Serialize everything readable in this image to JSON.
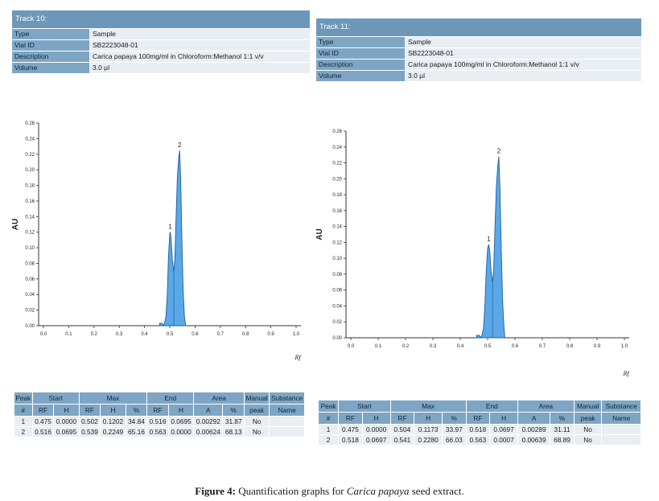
{
  "tracks": [
    {
      "header": "Track 10:",
      "info": [
        {
          "key": "Type",
          "value": "Sample"
        },
        {
          "key": "Vial ID",
          "value": "SB2223048-01"
        },
        {
          "key": "Description",
          "value": "Carica papaya 100mg/ml in Chloroform:Methanol 1:1 v/v"
        },
        {
          "key": "Volume",
          "value": "3.0 µl"
        }
      ],
      "table": {
        "group_headers": [
          "Peak",
          "Start",
          "Max",
          "End",
          "Area",
          "Manual",
          "Substance"
        ],
        "sub_headers": [
          "#",
          "RF",
          "H",
          "RF",
          "H",
          "%",
          "RF",
          "H",
          "A",
          "%",
          "peak",
          "Name"
        ],
        "rows": [
          [
            "1",
            "0.475",
            "0.0000",
            "0.502",
            "0.1202",
            "34.84",
            "0.516",
            "0.0695",
            "0.00292",
            "31.87",
            "No",
            ""
          ],
          [
            "2",
            "0.516",
            "0.0695",
            "0.539",
            "0.2249",
            "65.16",
            "0.563",
            "0.0000",
            "0.00624",
            "68.13",
            "No",
            ""
          ]
        ]
      }
    },
    {
      "header": "Track 11:",
      "info": [
        {
          "key": "Type",
          "value": "Sample"
        },
        {
          "key": "Vial ID",
          "value": "SB2223048-01"
        },
        {
          "key": "Description",
          "value": "Carica papaya 100mg/ml in Chloroform:Methanol 1:1 v/v"
        },
        {
          "key": "Volume",
          "value": "3.0 µl"
        }
      ],
      "table": {
        "group_headers": [
          "Peak",
          "Start",
          "Max",
          "End",
          "Area",
          "Manual",
          "Substance"
        ],
        "sub_headers": [
          "#",
          "RF",
          "H",
          "RF",
          "H",
          "%",
          "RF",
          "H",
          "A",
          "%",
          "peak",
          "Name"
        ],
        "rows": [
          [
            "1",
            "0.475",
            "0.0000",
            "0.504",
            "0.1173",
            "33.97",
            "0.518",
            "0.0697",
            "0.00289",
            "31.11",
            "No",
            ""
          ],
          [
            "2",
            "0.518",
            "0.0697",
            "0.541",
            "0.2280",
            "66.03",
            "0.563",
            "0.0007",
            "0.00639",
            "68.89",
            "No",
            ""
          ]
        ]
      }
    }
  ],
  "chart_data": [
    {
      "type": "area",
      "title": "",
      "xlabel": "Rf",
      "ylabel": "AU",
      "xlim": [
        0,
        1.0
      ],
      "ylim": [
        0,
        0.26
      ],
      "x_ticks": [
        "0.0",
        "0.1",
        "0.2",
        "0.3",
        "0.4",
        "0.5",
        "0.6",
        "0.7",
        "0.8",
        "0.9",
        "1.0"
      ],
      "y_ticks": [
        "0.00",
        "0.02",
        "0.04",
        "0.06",
        "0.08",
        "0.10",
        "0.12",
        "0.14",
        "0.16",
        "0.18",
        "0.20",
        "0.22",
        "0.24",
        "0.26"
      ],
      "grid": false,
      "fill_color": "#5aa8e8",
      "line_color": "#1f5f96",
      "peaks": [
        {
          "label": "1",
          "start_rf": 0.475,
          "max_rf": 0.502,
          "max_h": 0.1202,
          "end_rf": 0.516,
          "end_h": 0.0695
        },
        {
          "label": "2",
          "start_rf": 0.516,
          "max_rf": 0.539,
          "max_h": 0.2249,
          "end_rf": 0.563,
          "end_h": 0.0
        }
      ],
      "x": [
        0.46,
        0.47,
        0.475,
        0.48,
        0.485,
        0.49,
        0.495,
        0.5,
        0.502,
        0.505,
        0.51,
        0.516,
        0.52,
        0.525,
        0.53,
        0.535,
        0.539,
        0.543,
        0.548,
        0.553,
        0.558,
        0.563
      ],
      "y": [
        0.003,
        0.003,
        0.0,
        0.004,
        0.012,
        0.04,
        0.09,
        0.118,
        0.1202,
        0.112,
        0.085,
        0.0695,
        0.085,
        0.14,
        0.19,
        0.215,
        0.2249,
        0.19,
        0.11,
        0.045,
        0.012,
        0.0
      ]
    },
    {
      "type": "area",
      "title": "",
      "xlabel": "Rf",
      "ylabel": "AU",
      "xlim": [
        0,
        1.0
      ],
      "ylim": [
        0,
        0.26
      ],
      "x_ticks": [
        "0.0",
        "0.1",
        "0.2",
        "0.3",
        "0.4",
        "0.5",
        "0.6",
        "0.7",
        "0.8",
        "0.9",
        "1.0"
      ],
      "y_ticks": [
        "0.00",
        "0.02",
        "0.04",
        "0.06",
        "0.08",
        "0.10",
        "0.12",
        "0.14",
        "0.16",
        "0.18",
        "0.20",
        "0.22",
        "0.24",
        "0.26"
      ],
      "grid": false,
      "fill_color": "#5aa8e8",
      "line_color": "#1f5f96",
      "peaks": [
        {
          "label": "1",
          "start_rf": 0.475,
          "max_rf": 0.504,
          "max_h": 0.1173,
          "end_rf": 0.518,
          "end_h": 0.0697
        },
        {
          "label": "2",
          "start_rf": 0.518,
          "max_rf": 0.541,
          "max_h": 0.228,
          "end_rf": 0.563,
          "end_h": 0.0007
        }
      ],
      "x": [
        0.46,
        0.47,
        0.475,
        0.48,
        0.485,
        0.49,
        0.495,
        0.5,
        0.504,
        0.508,
        0.513,
        0.518,
        0.522,
        0.527,
        0.532,
        0.537,
        0.541,
        0.545,
        0.55,
        0.555,
        0.56,
        0.563
      ],
      "y": [
        0.003,
        0.003,
        0.0,
        0.004,
        0.012,
        0.04,
        0.085,
        0.112,
        0.1173,
        0.108,
        0.083,
        0.0697,
        0.085,
        0.14,
        0.19,
        0.216,
        0.228,
        0.19,
        0.11,
        0.045,
        0.012,
        0.0007
      ]
    }
  ],
  "caption": {
    "label": "Figure 4:",
    "text_before": "Quantification graphs for",
    "species": "Carica papaya",
    "text_after": "seed extract."
  }
}
